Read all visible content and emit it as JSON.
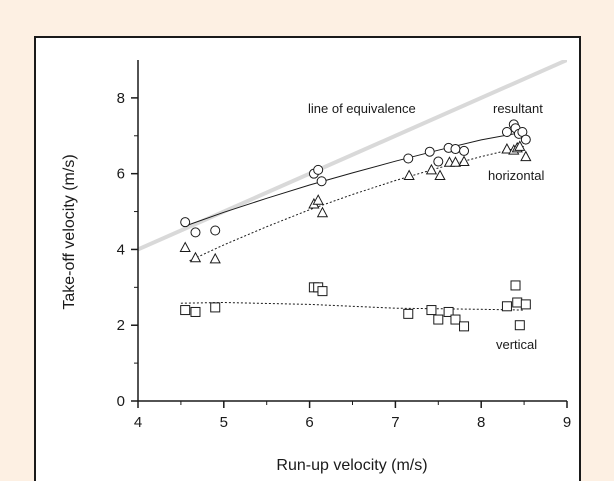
{
  "colors": {
    "background": "#fdf0e3",
    "panel": "#ffffff",
    "frame": "#1a1a1a",
    "equivalence_line": "#d9d9d9",
    "data": "#1a1a1a"
  },
  "chart_data": {
    "type": "scatter",
    "title": "",
    "xlabel": "Run-up velocity (m/s)",
    "ylabel": "Take-off velocity (m/s)",
    "xlim": [
      4,
      9
    ],
    "ylim": [
      0,
      9
    ],
    "xticks": [
      4,
      5,
      6,
      7,
      8,
      9
    ],
    "yticks": [
      0,
      2,
      4,
      6,
      8
    ],
    "grid": false,
    "legend": "none",
    "annotations": {
      "equivalence": "line of equivalence",
      "resultant": "resultant",
      "horizontal": "horizontal",
      "vertical": "vertical"
    },
    "equivalence_line": {
      "x": [
        4,
        9
      ],
      "y": [
        4,
        9
      ]
    },
    "series": [
      {
        "name": "resultant",
        "marker": "circle",
        "x": [
          4.55,
          4.67,
          4.9,
          6.05,
          6.1,
          6.14,
          7.15,
          7.4,
          7.5,
          7.62,
          7.7,
          7.8,
          8.3,
          8.38,
          8.4,
          8.44,
          8.48,
          8.52
        ],
        "y": [
          4.72,
          4.45,
          4.5,
          6.0,
          6.1,
          5.8,
          6.4,
          6.58,
          6.32,
          6.68,
          6.65,
          6.6,
          7.1,
          7.3,
          7.2,
          7.05,
          7.1,
          6.9
        ],
        "fit": {
          "style": "solid",
          "x": [
            4.55,
            5.0,
            5.5,
            6.0,
            6.5,
            7.0,
            7.5,
            8.0,
            8.5
          ],
          "y": [
            4.62,
            4.98,
            5.35,
            5.7,
            6.02,
            6.33,
            6.62,
            6.89,
            7.1
          ]
        }
      },
      {
        "name": "horizontal",
        "marker": "triangle",
        "x": [
          4.55,
          4.67,
          4.9,
          6.05,
          6.1,
          6.15,
          7.16,
          7.42,
          7.52,
          7.63,
          7.7,
          7.8,
          8.3,
          8.38,
          8.42,
          8.45,
          8.52
        ],
        "y": [
          4.05,
          3.78,
          3.75,
          5.2,
          5.3,
          4.97,
          5.95,
          6.1,
          5.95,
          6.3,
          6.3,
          6.32,
          6.65,
          6.62,
          6.68,
          6.72,
          6.45
        ],
        "fit": {
          "style": "dotted",
          "x": [
            4.6,
            5.0,
            5.5,
            6.0,
            6.5,
            7.0,
            7.5,
            8.0,
            8.5
          ],
          "y": [
            3.7,
            4.12,
            4.6,
            5.05,
            5.45,
            5.82,
            6.15,
            6.45,
            6.72
          ]
        }
      },
      {
        "name": "vertical",
        "marker": "square",
        "x": [
          4.55,
          4.67,
          4.9,
          6.05,
          6.1,
          6.15,
          7.15,
          7.42,
          7.5,
          7.62,
          7.7,
          7.8,
          8.3,
          8.4,
          8.42,
          8.45,
          8.52
        ],
        "y": [
          2.4,
          2.35,
          2.47,
          3.0,
          3.0,
          2.9,
          2.3,
          2.4,
          2.15,
          2.35,
          2.15,
          1.97,
          2.5,
          3.05,
          2.6,
          2.0,
          2.55
        ],
        "fit": {
          "style": "dotted",
          "x": [
            4.5,
            5.0,
            6.0,
            7.0,
            8.0,
            8.5
          ],
          "y": [
            2.58,
            2.6,
            2.55,
            2.45,
            2.42,
            2.4
          ]
        }
      }
    ]
  }
}
